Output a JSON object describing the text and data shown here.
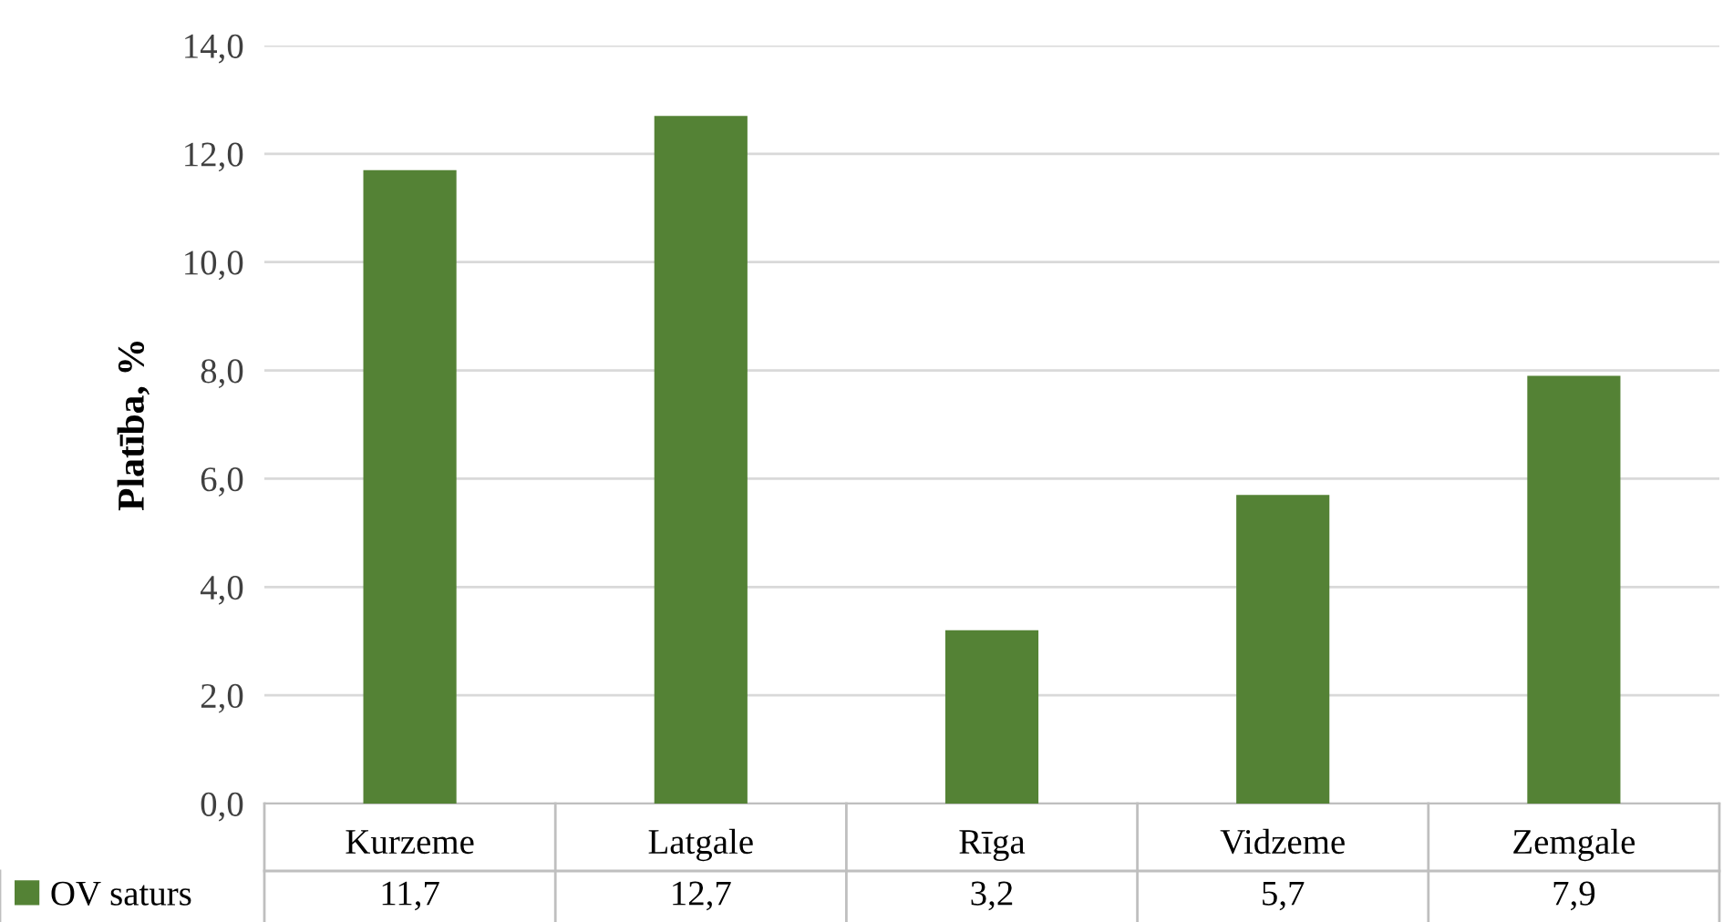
{
  "chart_data": {
    "type": "bar",
    "ylabel": "Platība, %",
    "categories": [
      "Kurzeme",
      "Latgale",
      "Rīga",
      "Vidzeme",
      "Zemgale"
    ],
    "series": [
      {
        "name": "OV saturs",
        "color": "#548235",
        "values": [
          11.7,
          12.7,
          3.2,
          5.7,
          7.9
        ],
        "value_labels": [
          "11,7",
          "12,7",
          "3,2",
          "5,7",
          "7,9"
        ]
      }
    ],
    "ylim": [
      0,
      14
    ],
    "yticks": [
      {
        "value": 0,
        "label": "0,0"
      },
      {
        "value": 2,
        "label": "2,0"
      },
      {
        "value": 4,
        "label": "4,0"
      },
      {
        "value": 6,
        "label": "6,0"
      },
      {
        "value": 8,
        "label": "8,0"
      },
      {
        "value": 10,
        "label": "10,0"
      },
      {
        "value": 12,
        "label": "12,0"
      },
      {
        "value": 14,
        "label": "14,0"
      }
    ],
    "grid": "y",
    "legend": "bottom"
  }
}
